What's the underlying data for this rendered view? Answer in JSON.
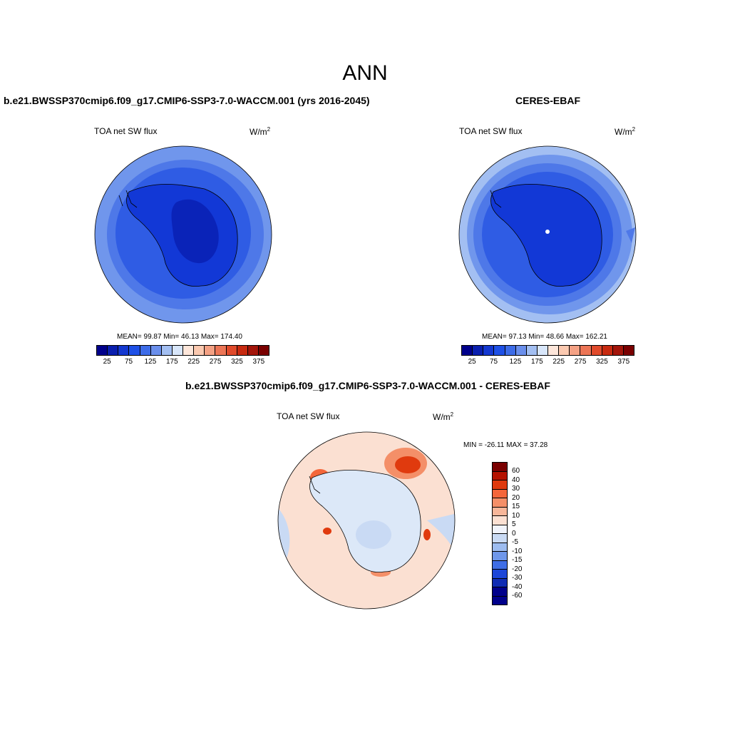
{
  "figure": {
    "title": "ANN"
  },
  "panel_model": {
    "title": "b.e21.BWSSP370cmip6.f09_g17.CMIP6-SSP3-7.0-WACCM.001 (yrs 2016-2045)",
    "variable": "TOA net SW flux",
    "units_base": "W/m",
    "units_sup": "2",
    "stats": "MEAN=  99.87  Min=  46.13  Max= 174.40"
  },
  "panel_obs": {
    "title": "CERES-EBAF",
    "variable": "TOA net SW flux",
    "units_base": "W/m",
    "units_sup": "2",
    "stats": "MEAN=  97.13  Min=  48.66  Max= 162.21"
  },
  "panel_diff": {
    "title": "b.e21.BWSSP370cmip6.f09_g17.CMIP6-SSP3-7.0-WACCM.001 - CERES-EBAF",
    "variable": "TOA net SW flux",
    "units_base": "W/m",
    "units_sup": "2",
    "minmax": "MIN = -26.11 MAX =  37.28"
  },
  "colorbar_main": {
    "colors": [
      "#00008b",
      "#0a1fae",
      "#1438d0",
      "#1e50e6",
      "#3d6ce8",
      "#6a8fec",
      "#a3bff2",
      "#d8e6fa",
      "#fde6da",
      "#fbc9b0",
      "#f4a184",
      "#ec7556",
      "#e04a2b",
      "#c72a10",
      "#a3150a",
      "#7a0000"
    ],
    "tick_labels": [
      "25",
      "75",
      "125",
      "175",
      "225",
      "275",
      "325",
      "375"
    ]
  },
  "colorbar_diff": {
    "colors": [
      "#7a0000",
      "#b51200",
      "#e03a0e",
      "#f4663a",
      "#f48f68",
      "#f7b699",
      "#fbe0d2",
      "#f0f3fb",
      "#c9daf4",
      "#9dbcf0",
      "#6f97ea",
      "#3f6ee6",
      "#1c46d8",
      "#0f2cb4",
      "#00008b"
    ],
    "tick_labels": [
      "60",
      "40",
      "30",
      "20",
      "15",
      "10",
      "5",
      "0",
      "-5",
      "-10",
      "-15",
      "-20",
      "-30",
      "-40",
      "-60"
    ]
  }
}
